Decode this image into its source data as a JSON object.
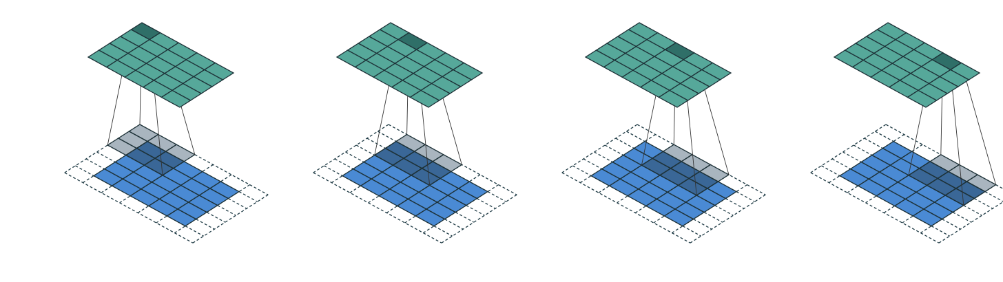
{
  "diagram": {
    "kind": "convolution-arithmetic",
    "description_units": "cells",
    "input_size": 5,
    "padding": 1,
    "kernel_size": 3,
    "stride": 1,
    "output_size": 5,
    "panel_count": 4,
    "frames": [
      {
        "step": 1,
        "output_cell": {
          "row": 0,
          "col": 0
        },
        "kernel_origin_padded": {
          "row": 0,
          "col": 0
        }
      },
      {
        "step": 2,
        "output_cell": {
          "row": 0,
          "col": 1
        },
        "kernel_origin_padded": {
          "row": 0,
          "col": 1
        }
      },
      {
        "step": 3,
        "output_cell": {
          "row": 0,
          "col": 2
        },
        "kernel_origin_padded": {
          "row": 0,
          "col": 2
        }
      },
      {
        "step": 4,
        "output_cell": {
          "row": 0,
          "col": 3
        },
        "kernel_origin_padded": {
          "row": 0,
          "col": 3
        }
      }
    ],
    "colors": {
      "input_fill": "#4a8ad4",
      "input_fill_overlap": "#3a6797",
      "kernel_fill": "#a9b5bf",
      "output_fill": "#56a89a",
      "output_highlight": "#2f6f68",
      "grid_line": "#1e3238",
      "padding_line": "#1e3a44",
      "connector_line": "#333333"
    }
  }
}
